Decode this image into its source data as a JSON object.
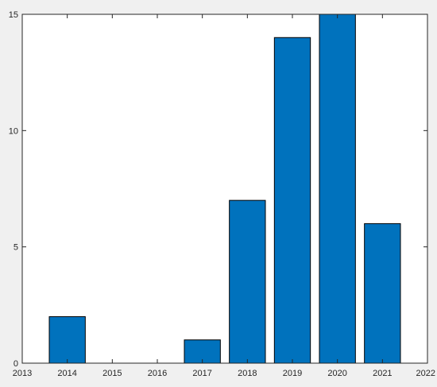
{
  "chart_data": {
    "type": "bar",
    "categories": [
      "2014",
      "2015",
      "2016",
      "2017",
      "2018",
      "2019",
      "2020",
      "2021"
    ],
    "values": [
      2,
      0,
      0,
      1,
      7,
      14,
      15,
      6
    ],
    "x_ticks": [
      "2013",
      "2014",
      "2015",
      "2016",
      "2017",
      "2018",
      "2019",
      "2020",
      "2021",
      "2022"
    ],
    "y_ticks": [
      "0",
      "5",
      "10",
      "15"
    ],
    "xlim": [
      2013,
      2022
    ],
    "ylim": [
      0,
      15
    ],
    "title": "",
    "xlabel": "",
    "ylabel": "",
    "grid": false,
    "legend": "none",
    "colors": {
      "bar_fill": "#0072bd",
      "bar_stroke": "#000000",
      "axes_background": "#ffffff",
      "figure_background": "#f0f0f0",
      "axis_line": "#262626"
    }
  }
}
